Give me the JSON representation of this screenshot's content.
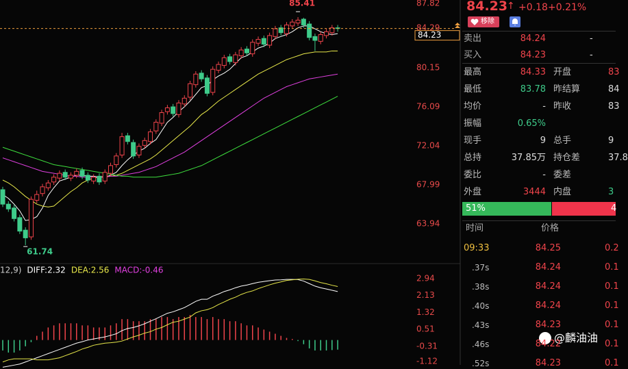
{
  "chart_data": [
    {
      "type": "candlestick",
      "up_color": "#f0444b",
      "down_color": "#3ecb8a",
      "open": [
        67.5,
        66.0,
        65.6,
        64.6,
        63.3,
        62.6,
        66.4,
        67.1,
        67.7,
        68.3,
        68.7,
        69.3,
        68.7,
        69.0,
        69.5,
        69.0,
        68.4,
        68.9,
        68.4,
        69.2,
        70.1,
        71.1,
        73.1,
        72.4,
        71.1,
        72.1,
        72.5,
        73.6,
        74.4,
        75.6,
        76.1,
        75.3,
        76.4,
        77.1,
        78.4,
        79.6,
        79.1,
        77.6,
        79.9,
        80.4,
        81.3,
        80.7,
        81.4,
        82.1,
        81.6,
        82.7,
        83.2,
        82.5,
        83.4,
        84.3,
        83.7,
        84.5,
        84.8,
        85.2,
        84.7,
        83.4,
        82.9,
        83.5,
        83.8,
        84.3
      ],
      "high": [
        67.8,
        66.3,
        65.9,
        64.9,
        63.6,
        66.8,
        67.4,
        68.1,
        68.5,
        69.1,
        69.5,
        69.6,
        69.3,
        69.7,
        69.8,
        69.3,
        69.1,
        69.2,
        69.6,
        70.3,
        71.3,
        73.4,
        73.4,
        72.7,
        72.3,
        72.9,
        73.8,
        74.8,
        75.8,
        76.3,
        76.4,
        76.8,
        77.3,
        78.8,
        79.8,
        79.9,
        79.4,
        80.3,
        80.8,
        81.5,
        81.6,
        81.8,
        82.3,
        82.4,
        83.1,
        83.4,
        83.5,
        83.8,
        84.5,
        84.6,
        84.9,
        85.2,
        85.41,
        85.35,
        85.0,
        83.7,
        83.9,
        84.2,
        84.6,
        84.6
      ],
      "low": [
        65.7,
        65.2,
        64.2,
        62.9,
        61.74,
        62.3,
        66.1,
        66.8,
        67.4,
        68.0,
        68.4,
        68.5,
        68.4,
        68.7,
        68.6,
        68.2,
        68.1,
        68.0,
        68.1,
        68.9,
        69.8,
        70.8,
        72.2,
        70.7,
        70.8,
        71.8,
        72.2,
        73.3,
        74.1,
        75.3,
        75.1,
        75.0,
        76.1,
        76.8,
        78.1,
        78.7,
        77.2,
        77.3,
        79.6,
        80.1,
        80.5,
        80.4,
        81.1,
        81.4,
        81.3,
        82.4,
        82.3,
        82.2,
        83.1,
        83.5,
        83.4,
        84.2,
        84.5,
        84.3,
        83.0,
        81.9,
        82.6,
        83.2,
        83.5,
        83.9
      ],
      "close": [
        66.0,
        65.5,
        64.5,
        63.2,
        62.5,
        66.5,
        67.0,
        67.8,
        68.2,
        68.8,
        69.2,
        68.8,
        69.0,
        69.4,
        68.9,
        68.5,
        68.8,
        68.3,
        69.3,
        70.0,
        71.0,
        73.0,
        72.5,
        71.0,
        72.0,
        72.6,
        73.5,
        74.5,
        75.5,
        76.0,
        75.4,
        76.5,
        77.0,
        78.5,
        79.5,
        79.0,
        77.5,
        80.0,
        80.5,
        81.2,
        80.8,
        81.5,
        82.0,
        81.7,
        82.8,
        83.1,
        82.6,
        83.5,
        84.2,
        83.8,
        84.6,
        84.9,
        85.1,
        84.6,
        83.3,
        83.0,
        83.6,
        83.9,
        84.3,
        84.23
      ],
      "series": [
        {
          "color": "#ffffff",
          "values": [
            67.0,
            66.6,
            66.0,
            65.3,
            64.3,
            64.4,
            64.7,
            65.6,
            66.9,
            67.7,
            68.4,
            68.6,
            68.8,
            69.0,
            69.0,
            68.9,
            68.9,
            68.8,
            68.8,
            69.0,
            69.3,
            70.0,
            70.6,
            71.1,
            71.5,
            71.8,
            72.3,
            72.7,
            73.6,
            74.5,
            75.0,
            75.6,
            76.1,
            76.7,
            77.4,
            78.1,
            78.3,
            78.9,
            79.3,
            79.6,
            80.0,
            80.6,
            81.2,
            81.4,
            81.8,
            82.2,
            82.4,
            82.7,
            83.2,
            83.4,
            83.6,
            83.9,
            84.3,
            84.5,
            84.5,
            84.2,
            83.9,
            83.7,
            83.6,
            83.7
          ]
        },
        {
          "color": "#e8e84a",
          "values": [
            68.5,
            68.2,
            67.8,
            67.3,
            66.8,
            66.4,
            66.0,
            65.8,
            65.7,
            65.8,
            66.3,
            66.8,
            67.3,
            67.7,
            68.2,
            68.5,
            68.7,
            68.8,
            68.9,
            68.9,
            69.0,
            69.2,
            69.5,
            69.8,
            70.1,
            70.4,
            70.7,
            71.1,
            71.6,
            72.1,
            72.6,
            73.1,
            73.6,
            74.1,
            74.7,
            75.3,
            75.7,
            76.2,
            76.7,
            77.1,
            77.5,
            77.9,
            78.3,
            78.7,
            79.1,
            79.5,
            79.8,
            80.1,
            80.4,
            80.7,
            81.0,
            81.2,
            81.4,
            81.6,
            81.7,
            81.8,
            81.8,
            81.8,
            81.9,
            81.9
          ]
        },
        {
          "color": "#e040e0",
          "values": [
            70.8,
            70.6,
            70.4,
            70.2,
            70.0,
            69.8,
            69.6,
            69.4,
            69.3,
            69.2,
            69.1,
            69.0,
            68.9,
            68.9,
            68.8,
            68.8,
            68.8,
            68.8,
            68.8,
            68.9,
            68.9,
            69.0,
            69.1,
            69.2,
            69.3,
            69.5,
            69.7,
            69.9,
            70.2,
            70.5,
            70.8,
            71.1,
            71.4,
            71.8,
            72.2,
            72.6,
            73.0,
            73.4,
            73.8,
            74.2,
            74.6,
            75.0,
            75.4,
            75.8,
            76.2,
            76.6,
            77.0,
            77.3,
            77.6,
            77.9,
            78.2,
            78.4,
            78.6,
            78.8,
            79.0,
            79.1,
            79.2,
            79.3,
            79.4,
            79.5
          ]
        },
        {
          "color": "#3ee03e",
          "values": [
            71.9,
            71.7,
            71.5,
            71.3,
            71.1,
            70.9,
            70.7,
            70.5,
            70.3,
            70.1,
            70.0,
            69.9,
            69.8,
            69.7,
            69.6,
            69.5,
            69.4,
            69.3,
            69.2,
            69.1,
            69.0,
            68.9,
            68.9,
            68.8,
            68.8,
            68.8,
            68.8,
            68.8,
            68.9,
            69.0,
            69.1,
            69.2,
            69.4,
            69.6,
            69.8,
            70.0,
            70.3,
            70.6,
            70.9,
            71.2,
            71.5,
            71.8,
            72.1,
            72.4,
            72.7,
            73.0,
            73.3,
            73.6,
            73.9,
            74.2,
            74.5,
            74.8,
            75.1,
            75.4,
            75.7,
            76.0,
            76.3,
            76.6,
            76.9,
            77.2
          ]
        }
      ],
      "ylim": [
        59.83,
        87.19
      ],
      "yticks": [
        87.82,
        84.29,
        80.15,
        76.09,
        72.04,
        67.99,
        63.94
      ],
      "max_label": 85.41,
      "min_label": 61.74,
      "last_price": 84.23,
      "last_price_color": "#f0a040"
    },
    {
      "type": "macd",
      "legend": [
        "12,9)",
        "DIFF:2.32",
        "DEA:2.56",
        "MACD:-0.46"
      ],
      "legend_colors": [
        "#cccccc",
        "#ffffff",
        "#e8e84a",
        "#e040e0"
      ],
      "series": [
        {
          "name": "DIFF",
          "color": "#ffffff",
          "values": [
            -1.3,
            -1.25,
            -1.2,
            -1.15,
            -1.05,
            -0.95,
            -0.85,
            -0.75,
            -0.65,
            -0.55,
            -0.45,
            -0.35,
            -0.25,
            -0.15,
            -0.08,
            0.0,
            0.05,
            0.1,
            0.15,
            0.22,
            0.3,
            0.45,
            0.55,
            0.6,
            0.68,
            0.78,
            0.9,
            1.02,
            1.15,
            1.28,
            1.35,
            1.45,
            1.55,
            1.7,
            1.85,
            1.95,
            1.95,
            2.1,
            2.2,
            2.32,
            2.4,
            2.5,
            2.58,
            2.63,
            2.7,
            2.76,
            2.8,
            2.84,
            2.87,
            2.88,
            2.9,
            2.9,
            2.89,
            2.82,
            2.7,
            2.58,
            2.5,
            2.44,
            2.38,
            2.32
          ]
        },
        {
          "name": "DEA",
          "color": "#e8e84a",
          "values": [
            -1.05,
            -0.95,
            -0.9,
            -0.9,
            -0.9,
            -0.9,
            -0.95,
            -0.95,
            -0.95,
            -0.9,
            -0.85,
            -0.75,
            -0.65,
            -0.55,
            -0.43,
            -0.35,
            -0.25,
            -0.2,
            -0.15,
            -0.13,
            -0.1,
            -0.05,
            0.05,
            0.15,
            0.23,
            0.33,
            0.4,
            0.52,
            0.6,
            0.73,
            0.85,
            0.9,
            1.0,
            1.1,
            1.3,
            1.4,
            1.45,
            1.55,
            1.7,
            1.82,
            1.95,
            2.05,
            2.18,
            2.28,
            2.35,
            2.46,
            2.55,
            2.64,
            2.72,
            2.78,
            2.85,
            2.88,
            2.91,
            2.92,
            2.9,
            2.83,
            2.75,
            2.69,
            2.62,
            2.56
          ]
        }
      ],
      "values": [
        -0.5,
        -0.6,
        -0.6,
        -0.5,
        -0.3,
        -0.1,
        0.2,
        0.4,
        0.6,
        0.7,
        0.8,
        0.8,
        0.8,
        0.8,
        0.7,
        0.7,
        0.6,
        0.6,
        0.6,
        0.7,
        0.8,
        1.0,
        1.0,
        0.9,
        0.9,
        0.9,
        1.0,
        1.0,
        1.1,
        1.1,
        1.0,
        1.1,
        1.1,
        1.2,
        1.1,
        1.1,
        1.0,
        1.1,
        1.0,
        1.0,
        0.9,
        0.9,
        0.8,
        0.7,
        0.7,
        0.6,
        0.5,
        0.4,
        0.3,
        0.2,
        0.1,
        0.05,
        -0.05,
        -0.2,
        -0.4,
        -0.5,
        -0.5,
        -0.5,
        -0.48,
        -0.46
      ],
      "up_color": "#f0444b",
      "down_color": "#3ecb8a",
      "ylim": [
        -1.19,
        3.33
      ],
      "yticks": [
        2.94,
        2.13,
        1.32,
        0.51,
        -0.31,
        -1.12
      ]
    }
  ],
  "quote_panel": {
    "price": "84.23",
    "arrow": "↑",
    "change": "+0.18",
    "change_pct": "+0.21%",
    "remove_button": "移除",
    "bid_ask": [
      {
        "label": "卖出",
        "value": "84.24",
        "value2": "-"
      },
      {
        "label": "买入",
        "value": "84.23",
        "value2": "-"
      }
    ],
    "stats": [
      {
        "label": "最高",
        "value": "84.33",
        "color": "#f0444b",
        "label2": "开盘",
        "value2": "83",
        "color2": "#f0444b"
      },
      {
        "label": "最低",
        "value": "83.78",
        "color": "#3ecb8a",
        "label2": "昨结算",
        "value2": "84",
        "color2": "#dddddd"
      },
      {
        "label": "均价",
        "value": "-",
        "color": "#dddddd",
        "label2": "昨收",
        "value2": "83",
        "color2": "#dddddd"
      },
      {
        "label": "振幅",
        "value": "0.65%",
        "color": "#3ecb8a"
      },
      {
        "label": "现手",
        "value": "9",
        "color": "#dddddd",
        "label2": "总手",
        "value2": "9",
        "color2": "#dddddd"
      },
      {
        "label": "总持",
        "value": "37.85万",
        "color": "#dddddd",
        "label2": "持仓差",
        "value2": "37.8",
        "color2": "#dddddd"
      },
      {
        "label": "委比",
        "value": "-",
        "color": "#dddddd",
        "label2": "委差"
      },
      {
        "label": "外盘",
        "value": "3444",
        "color": "#f0444b",
        "label2": "内盘",
        "value2": "3",
        "color2": "#3ecb8a"
      }
    ],
    "ratio": {
      "buy": "51%",
      "sell": "4"
    },
    "trades": {
      "headers": [
        "时间",
        "价格"
      ],
      "rows": [
        [
          "09:33",
          "84.25",
          "0.2"
        ],
        [
          ".37s",
          "84.24",
          "0.1"
        ],
        [
          ".38s",
          "84.24",
          "0.1"
        ],
        [
          ".40s",
          "84.24",
          "0.1"
        ],
        [
          ".43s",
          "84.23",
          "0.1"
        ],
        [
          ".46s",
          "84.22",
          "0.1"
        ],
        [
          ".52s",
          "84.23",
          "0.1"
        ]
      ]
    },
    "watermark": "@麟油油"
  }
}
